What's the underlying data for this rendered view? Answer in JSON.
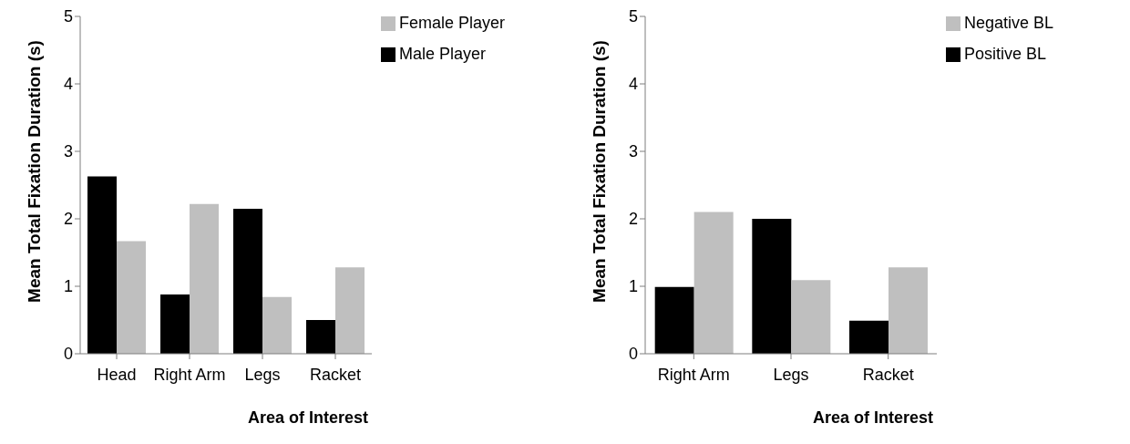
{
  "chart_data": [
    {
      "type": "bar",
      "xlabel": "Area of Interest",
      "ylabel": "Mean Total Fixation Duration (s)",
      "categories": [
        "Head",
        "Right Arm",
        "Legs",
        "Racket"
      ],
      "series": [
        {
          "name": "Male Player",
          "color": "#000000",
          "values": [
            2.63,
            0.88,
            2.15,
            0.5
          ]
        },
        {
          "name": "Female Player",
          "color": "#bfbfbf",
          "values": [
            1.67,
            2.22,
            0.84,
            1.28
          ]
        }
      ],
      "ylim": [
        0,
        5
      ],
      "yticks": [
        0,
        1,
        2,
        3,
        4,
        5
      ],
      "grid": false,
      "legend": "top right"
    },
    {
      "type": "bar",
      "xlabel": "Area of Interest",
      "ylabel": "Mean Total Fixation Duration (s)",
      "categories": [
        "Right Arm",
        "Legs",
        "Racket"
      ],
      "series": [
        {
          "name": "Positive BL",
          "color": "#000000",
          "values": [
            0.99,
            2.0,
            0.49
          ]
        },
        {
          "name": "Negative BL",
          "color": "#bfbfbf",
          "values": [
            2.1,
            1.09,
            1.28
          ]
        }
      ],
      "ylim": [
        0,
        5
      ],
      "yticks": [
        0,
        1,
        2,
        3,
        4,
        5
      ],
      "grid": false,
      "legend": "top right"
    }
  ]
}
